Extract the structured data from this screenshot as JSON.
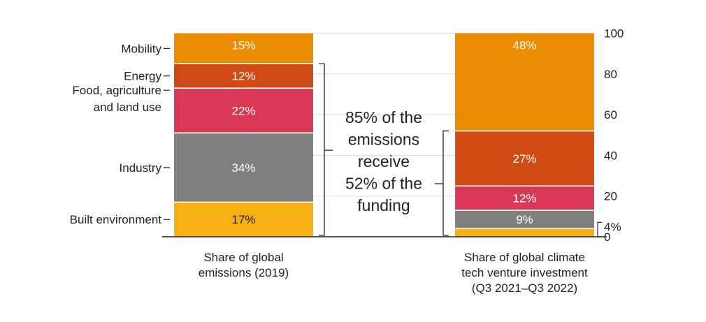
{
  "chart_data": {
    "type": "bar",
    "stacked": true,
    "categories": [
      "Share of global emissions (2019)",
      "Share of global climate tech venture investment (Q3 2021–Q3 2022)"
    ],
    "bar_captions": [
      [
        "Share of global",
        "emissions (2019)"
      ],
      [
        "Share of global climate",
        "tech venture investment",
        "(Q3 2021–Q3 2022)"
      ]
    ],
    "series": [
      {
        "name": "Built environment",
        "values": [
          17,
          4
        ],
        "labels": [
          "17%",
          "4%"
        ],
        "color": "#F5B014"
      },
      {
        "name": "Industry",
        "values": [
          34,
          9
        ],
        "labels": [
          "34%",
          "9%"
        ],
        "color": "#7F7F7F"
      },
      {
        "name": "Food, agriculture and land use",
        "series_label_lines": [
          "Food, agriculture",
          "and land use"
        ],
        "values": [
          22,
          12
        ],
        "labels": [
          "22%",
          "12%"
        ],
        "color": "#D93954"
      },
      {
        "name": "Energy",
        "values": [
          12,
          27
        ],
        "labels": [
          "12%",
          "27%"
        ],
        "color": "#D04A16"
      },
      {
        "name": "Mobility",
        "values": [
          15,
          48
        ],
        "labels": [
          "15%",
          "48%"
        ],
        "color": "#EB8C00"
      }
    ],
    "y_axis": {
      "side": "right",
      "min": 0,
      "max": 100,
      "ticks": [
        0,
        20,
        40,
        60,
        80,
        100
      ],
      "tick_labels": [
        "0",
        "20",
        "40",
        "60",
        "80",
        "100"
      ]
    },
    "gridlines": true,
    "annotation": {
      "lines": [
        "85% of the",
        "emissions",
        "receive",
        "52% of the",
        "funding"
      ]
    }
  }
}
